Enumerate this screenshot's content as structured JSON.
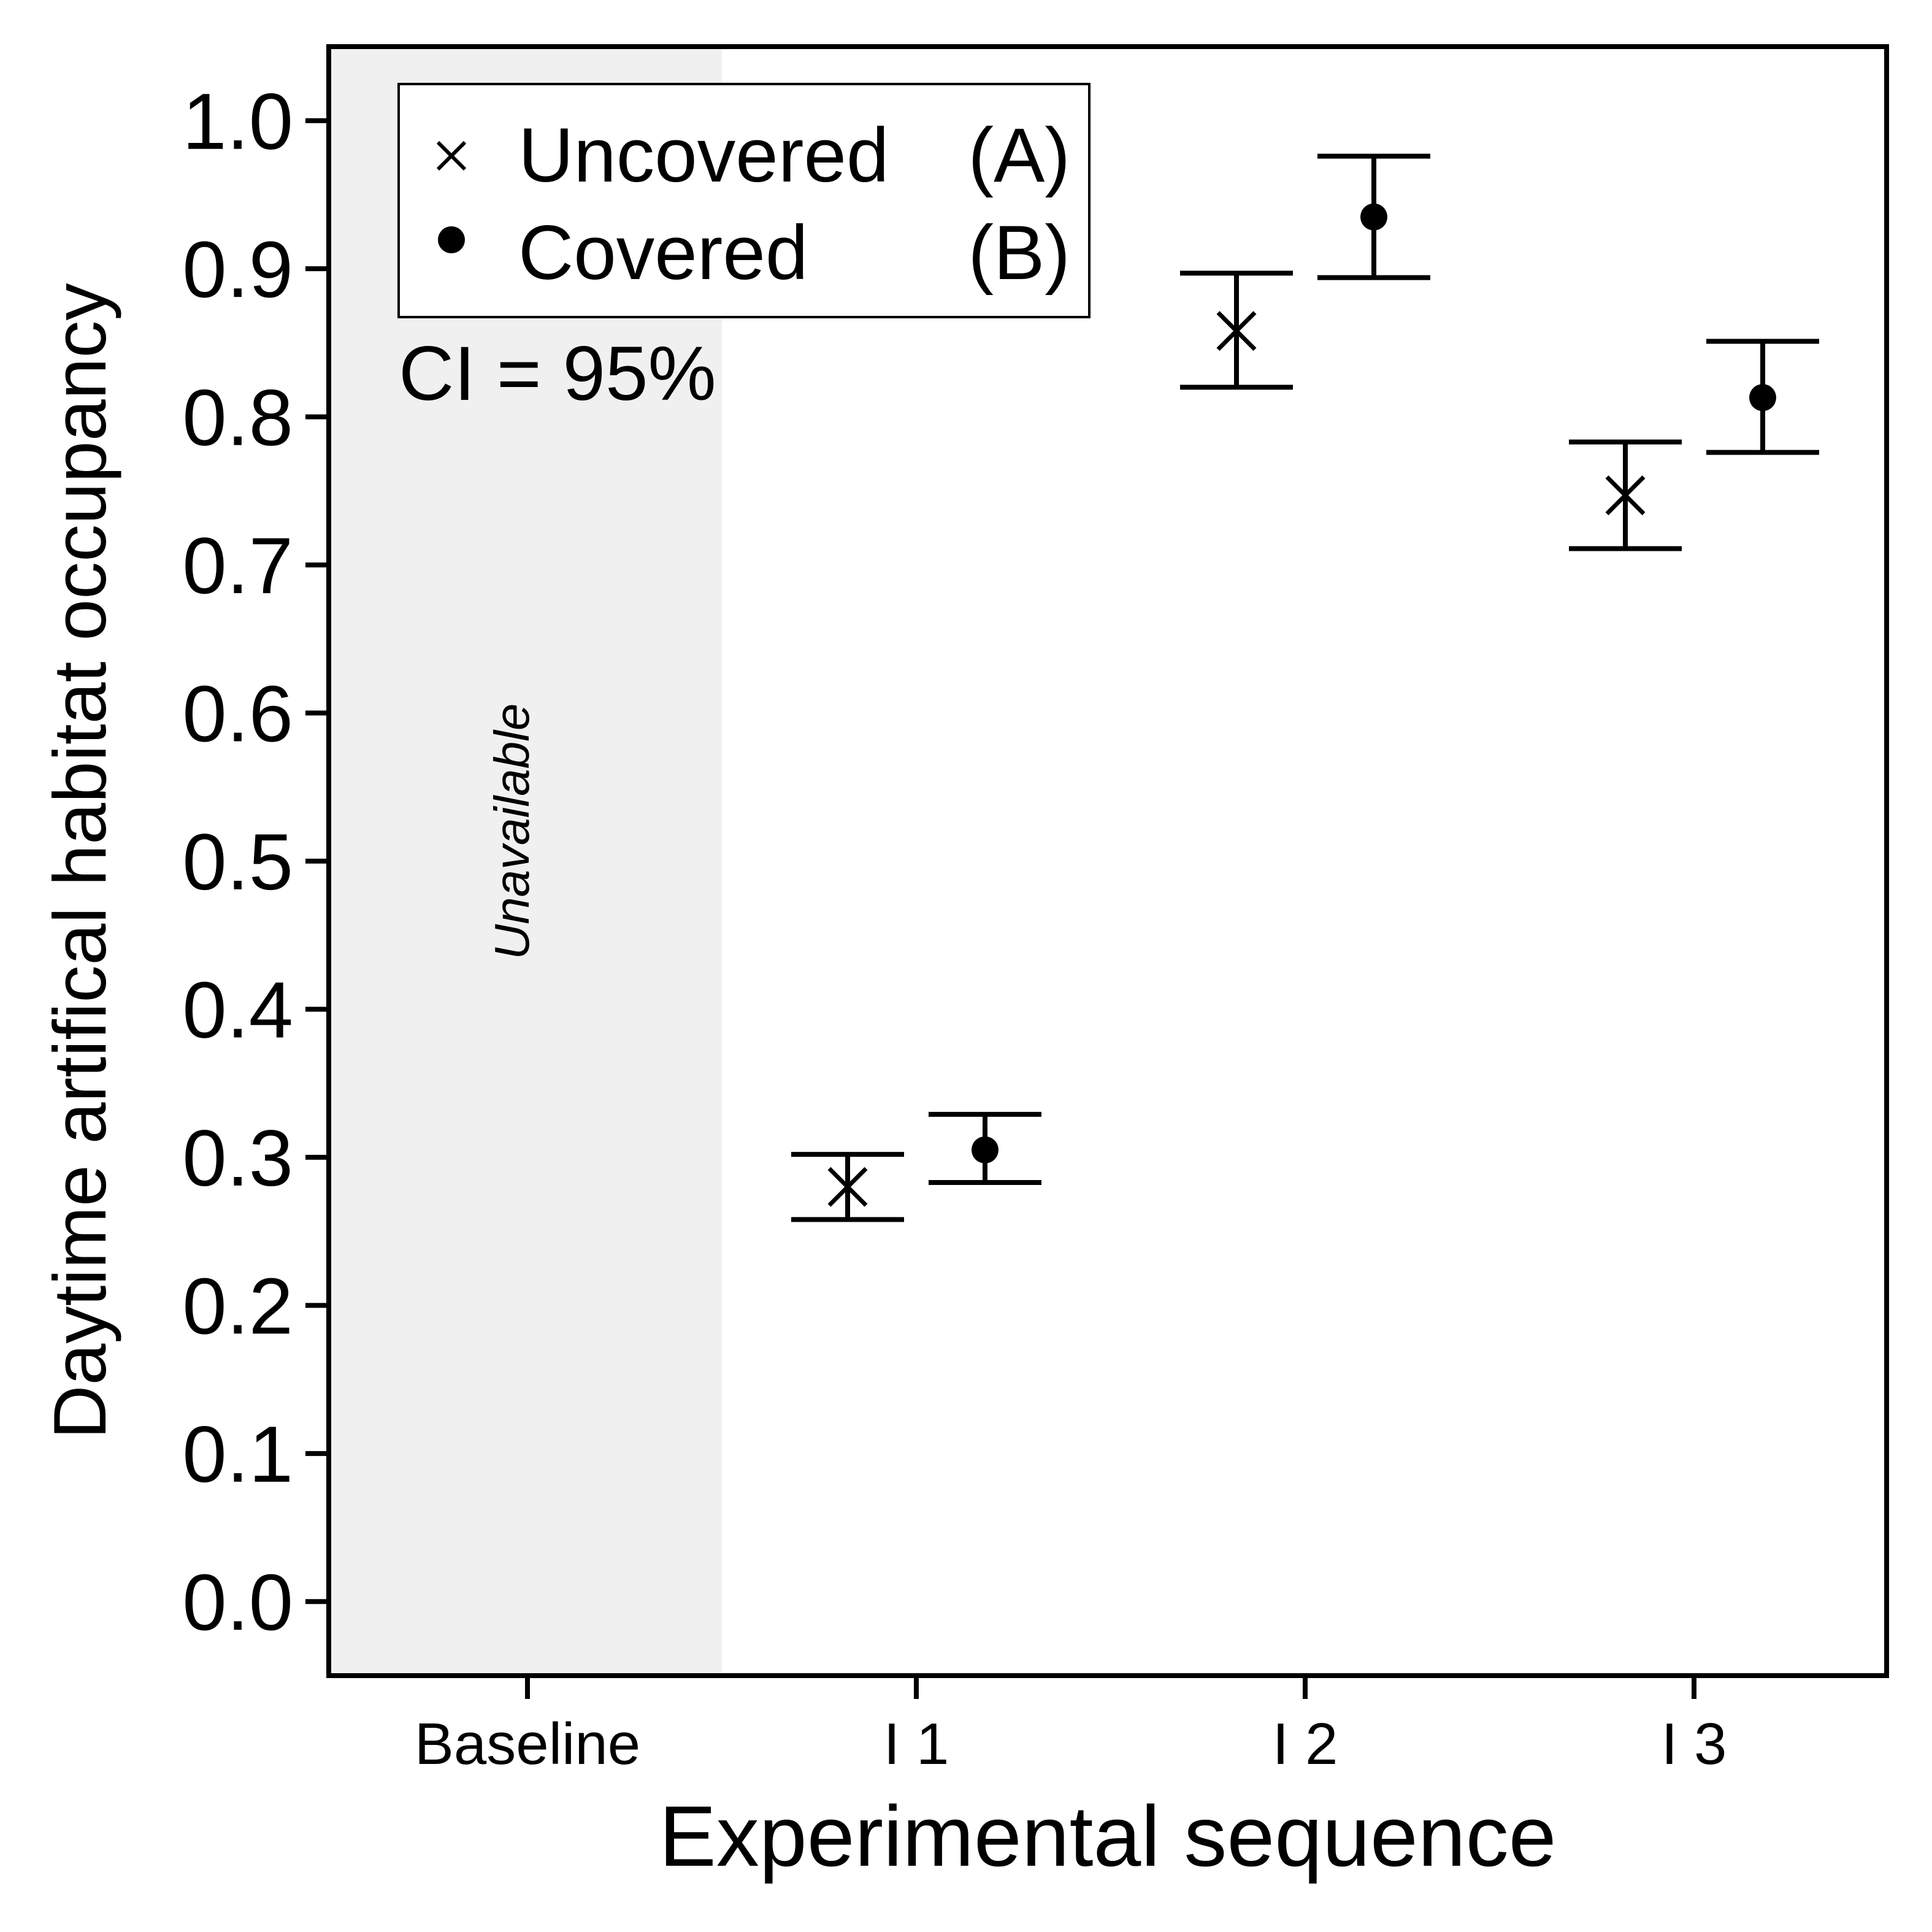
{
  "chart_data": {
    "type": "scatter",
    "xlabel": "Experimental sequence",
    "ylabel": "Daytime artifical habitat occupancy",
    "categories": [
      "Baseline",
      "I 1",
      "I 2",
      "I 3"
    ],
    "ylim": [
      -0.05,
      1.05
    ],
    "yticks": [
      "0.0",
      "0.1",
      "0.2",
      "0.3",
      "0.4",
      "0.5",
      "0.6",
      "0.7",
      "0.8",
      "0.9",
      "1.0"
    ],
    "grid": false,
    "legend_position": "top-left",
    "annotations": {
      "ci": "CI = 95%",
      "shaded_region": "Unavailable"
    },
    "shaded_category": "Baseline",
    "series": [
      {
        "name": "Uncovered (A)",
        "legend_name": "Uncovered",
        "legend_code": "(A)",
        "marker": "x",
        "values": [
          null,
          0.28,
          0.858,
          0.747
        ],
        "ci_lower": [
          null,
          0.258,
          0.82,
          0.711
        ],
        "ci_upper": [
          null,
          0.302,
          0.897,
          0.783
        ]
      },
      {
        "name": "Covered (B)",
        "legend_name": "Covered",
        "legend_code": "(B)",
        "marker": "circle",
        "values": [
          null,
          0.305,
          0.935,
          0.813
        ],
        "ci_lower": [
          null,
          0.283,
          0.894,
          0.776
        ],
        "ci_upper": [
          null,
          0.329,
          0.976,
          0.851
        ]
      }
    ],
    "colors": {
      "ink": "#000000",
      "shade": "#f0f0f0",
      "background": "#ffffff"
    }
  }
}
